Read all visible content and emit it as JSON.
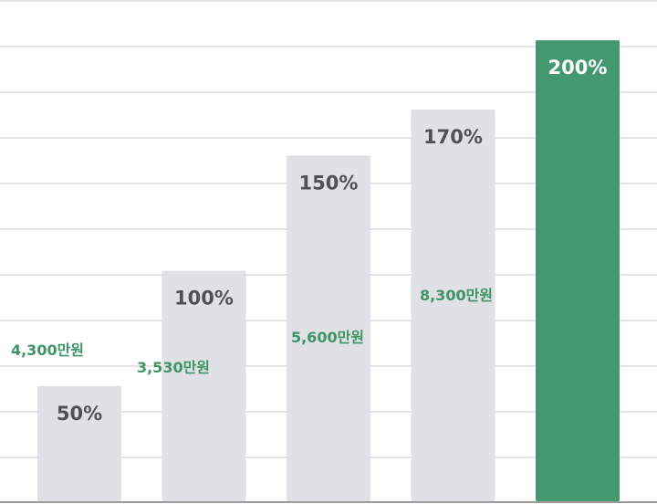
{
  "colors": {
    "bar_default": "#dfe1e5",
    "bar_highlight": "#439870",
    "pct_text_default": "#4f5155",
    "pct_text_highlight": "#ffffff",
    "amount_text": "#3f9468",
    "grid": "#e3e3e3",
    "baseline": "#9a9a9a"
  },
  "chart_data": {
    "type": "bar",
    "categories": [
      "",
      "",
      "",
      "",
      ""
    ],
    "values": [
      50,
      100,
      150,
      170,
      200
    ],
    "value_labels": [
      "50%",
      "100%",
      "150%",
      "170%",
      "200%"
    ],
    "amount_labels": [
      "4,300만원",
      "3,530만원",
      "5,600만원",
      "8,300만원",
      ""
    ],
    "highlight_index": 4,
    "ylim": [
      0,
      204
    ],
    "grid": true,
    "title": "",
    "xlabel": "",
    "ylabel": ""
  }
}
